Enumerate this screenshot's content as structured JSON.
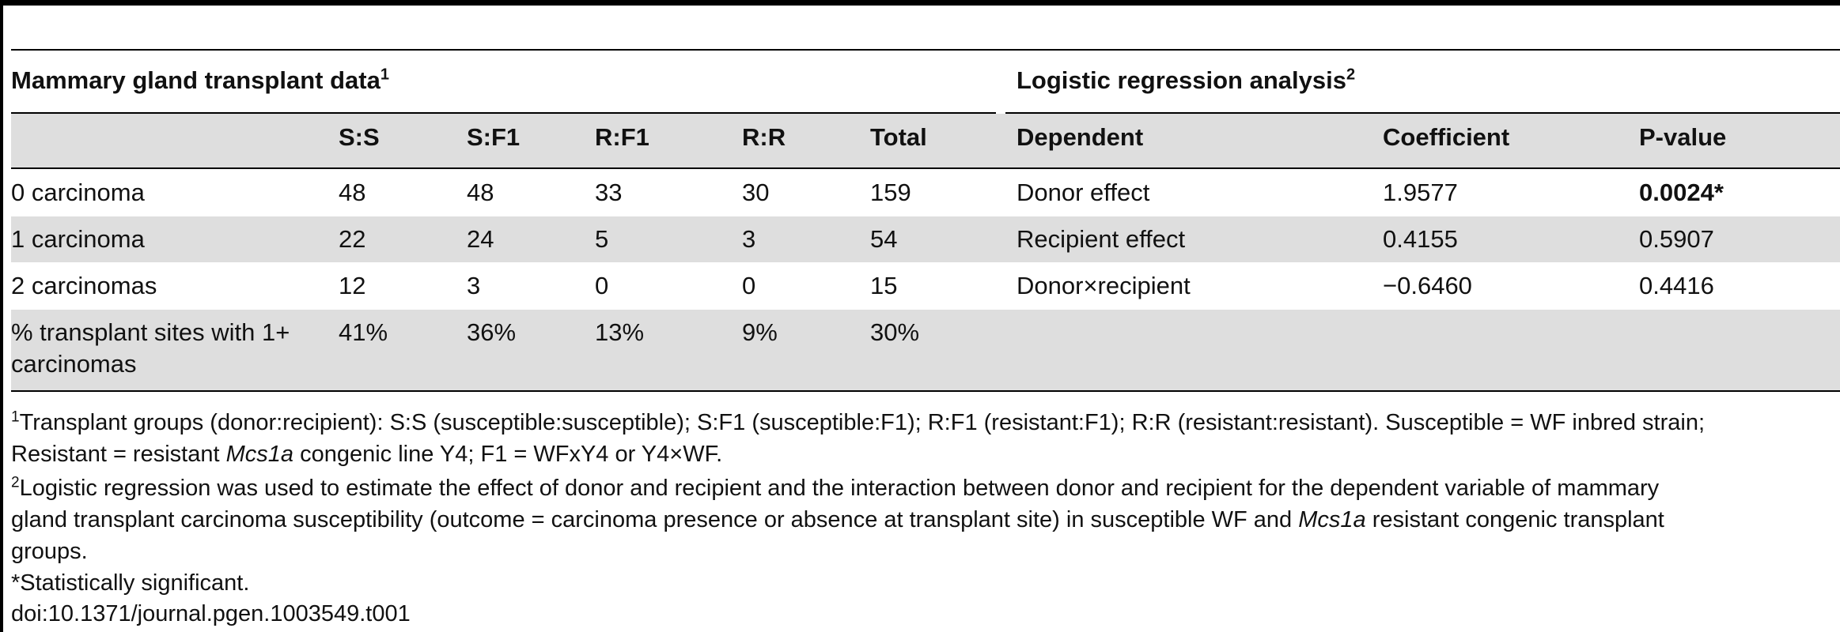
{
  "left_section": {
    "title": "Mammary gland transplant data",
    "title_sup": "1"
  },
  "right_section": {
    "title": "Logistic regression analysis",
    "title_sup": "2"
  },
  "left_table": {
    "headers": [
      "",
      "S:S",
      "S:F1",
      "R:F1",
      "R:R",
      "Total"
    ],
    "rows": [
      [
        "0 carcinoma",
        "48",
        "48",
        "33",
        "30",
        "159"
      ],
      [
        "1 carcinoma",
        "22",
        "24",
        "5",
        "3",
        "54"
      ],
      [
        "2 carcinomas",
        "12",
        "3",
        "0",
        "0",
        "15"
      ],
      [
        "% transplant sites with 1+",
        "41%",
        "36%",
        "13%",
        "9%",
        "30%"
      ]
    ],
    "last_row_label_line2": "carcinomas"
  },
  "right_table": {
    "headers": [
      "Dependent",
      "Coefficient",
      "P-value"
    ],
    "rows": [
      [
        "Donor effect",
        "1.9577",
        "0.0024*"
      ],
      [
        "Recipient effect",
        "0.4155",
        "0.5907"
      ],
      [
        "Donor×recipient",
        "−0.6460",
        "0.4416"
      ]
    ]
  },
  "footnotes": {
    "fn1_sup": "1",
    "fn1_line1": "Transplant groups (donor:recipient): S:S (susceptible:susceptible); S:F1 (susceptible:F1); R:F1 (resistant:F1); R:R (resistant:resistant). Susceptible = WF inbred strain;",
    "fn1_line2_a": "Resistant = resistant ",
    "fn1_line2_gene": "Mcs1a",
    "fn1_line2_b": " congenic line Y4; F1 = WFxY4 or Y4×WF.",
    "fn2_sup": "2",
    "fn2_line1": "Logistic regression was used to estimate the effect of donor and recipient and the interaction between donor and recipient for the dependent variable of mammary",
    "fn2_line2_a": "gland transplant carcinoma susceptibility (outcome = carcinoma presence or absence at transplant site) in susceptible WF and ",
    "fn2_line2_gene": "Mcs1a",
    "fn2_line2_b": " resistant congenic transplant",
    "fn2_line3": "groups.",
    "fn3": "*Statistically significant.",
    "doi": "doi:10.1371/journal.pgen.1003549.t001"
  }
}
